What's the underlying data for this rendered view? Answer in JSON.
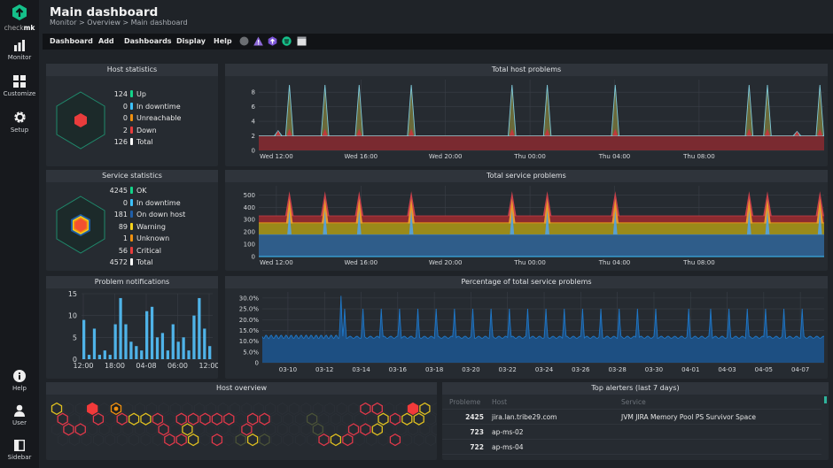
{
  "sidebar": {
    "logo": "checkmk",
    "items": [
      {
        "label": "Monitor",
        "icon": "bar-chart-icon"
      },
      {
        "label": "Customize",
        "icon": "grid-icon"
      },
      {
        "label": "Setup",
        "icon": "gear-icon"
      }
    ],
    "bottom": [
      {
        "label": "Help",
        "icon": "info-icon"
      },
      {
        "label": "User",
        "icon": "user-icon"
      },
      {
        "label": "Sidebar",
        "icon": "sidebar-toggle-icon"
      }
    ]
  },
  "header": {
    "title": "Main dashboard",
    "breadcrumb": "Monitor > Overview > Main dashboard"
  },
  "menu": {
    "items": [
      "Dashboard",
      "Add",
      "Dashboards",
      "Display",
      "Help"
    ],
    "icons": [
      "grey-circle-icon",
      "warning-triangle-icon",
      "purple-hexagon-icon",
      "green-circle-icon",
      "calendar-icon"
    ]
  },
  "colors": {
    "ok": "#13d389",
    "downtime": "#3cc2ff",
    "unreachable": "#f0900f",
    "down": "#e93c3c",
    "on_down_host": "#1f5ea8",
    "warning": "#f7d31c",
    "unknown": "#f0900f",
    "critical": "#e93c3c",
    "total": "#ffffff"
  },
  "host_stats": {
    "title": "Host statistics",
    "rows": [
      {
        "value": "124",
        "label": "Up",
        "color": "#13d389"
      },
      {
        "value": "0",
        "label": "In downtime",
        "color": "#3cc2ff"
      },
      {
        "value": "0",
        "label": "Unreachable",
        "color": "#f0900f"
      },
      {
        "value": "2",
        "label": "Down",
        "color": "#e93c3c"
      },
      {
        "value": "126",
        "label": "Total",
        "color": "#ffffff"
      }
    ]
  },
  "service_stats": {
    "title": "Service statistics",
    "rows": [
      {
        "value": "4245",
        "label": "OK",
        "color": "#13d389"
      },
      {
        "value": "0",
        "label": "In downtime",
        "color": "#3cc2ff"
      },
      {
        "value": "181",
        "label": "On down host",
        "color": "#1f5ea8"
      },
      {
        "value": "89",
        "label": "Warning",
        "color": "#f7d31c"
      },
      {
        "value": "1",
        "label": "Unknown",
        "color": "#f0900f"
      },
      {
        "value": "56",
        "label": "Critical",
        "color": "#e93c3c"
      },
      {
        "value": "4572",
        "label": "Total",
        "color": "#ffffff"
      }
    ]
  },
  "chart_data": [
    {
      "id": "host_problems",
      "type": "area",
      "title": "Total host problems",
      "xrange": [
        "Wed 11:10",
        "Thu 13:55"
      ],
      "xticks": [
        "Wed 12:00",
        "Wed 16:00",
        "Wed 20:00",
        "Thu 00:00",
        "Thu 04:00",
        "Thu 08:00"
      ],
      "ylim": [
        0,
        9
      ],
      "yticks": [
        0,
        2,
        4,
        6,
        8
      ],
      "grid": true,
      "baseline": 2,
      "spikes": [
        {
          "time": "Wed 12:05",
          "value": 2.7
        },
        {
          "time": "Wed 12:37",
          "value": 9
        },
        {
          "time": "Wed 14:18",
          "value": 9
        },
        {
          "time": "Wed 15:55",
          "value": 9
        },
        {
          "time": "Wed 18:23",
          "value": 9
        },
        {
          "time": "Wed 23:09",
          "value": 9
        },
        {
          "time": "Thu 00:49",
          "value": 9
        },
        {
          "time": "Thu 04:02",
          "value": 9
        },
        {
          "time": "Thu 10:22",
          "value": 9
        },
        {
          "time": "Thu 11:14",
          "value": 9
        },
        {
          "time": "Thu 12:38",
          "value": 2.6
        },
        {
          "time": "Thu 13:43",
          "value": 9
        }
      ]
    },
    {
      "id": "service_problems",
      "type": "area",
      "title": "Total service problems",
      "xrange": [
        "Wed 11:10",
        "Thu 13:55"
      ],
      "xticks": [
        "Wed 12:00",
        "Wed 16:00",
        "Wed 20:00",
        "Thu 00:00",
        "Thu 04:00",
        "Thu 08:00"
      ],
      "ylim": [
        0,
        560
      ],
      "yticks": [
        0,
        100,
        200,
        300,
        400,
        500
      ],
      "grid": true,
      "stack": [
        {
          "value": 180,
          "color": "#2f5d8a"
        },
        {
          "value": 90,
          "color": "#9a8a1a"
        },
        {
          "value": 10,
          "color": "#b8641c"
        },
        {
          "value": 50,
          "color": "#8c2a2f"
        }
      ],
      "spike_total": 530,
      "spike_times": [
        "Wed 12:37",
        "Wed 14:18",
        "Wed 15:55",
        "Wed 18:23",
        "Wed 23:09",
        "Thu 00:49",
        "Thu 04:02",
        "Thu 10:22",
        "Thu 11:14",
        "Thu 13:43"
      ]
    },
    {
      "id": "notifications",
      "type": "bar",
      "title": "Problem notifications",
      "ylim": [
        0,
        15
      ],
      "yticks": [
        0,
        5,
        10,
        15
      ],
      "xticks": [
        "12:00",
        "18:00",
        "04-08",
        "06:00",
        "12:00"
      ],
      "values": [
        9,
        1,
        7,
        1,
        2,
        1,
        8,
        14,
        8,
        4,
        3,
        2,
        11,
        12,
        5,
        6,
        2,
        8,
        4,
        5,
        2,
        10,
        14,
        7,
        3
      ],
      "color": "#4fb3e8"
    },
    {
      "id": "pct_service_problems",
      "type": "area",
      "title": "Percentage of total service problems",
      "xrange": [
        "03-08.6",
        "04-08.3"
      ],
      "xticks": [
        "03-10",
        "03-12",
        "03-14",
        "03-16",
        "03-18",
        "03-20",
        "03-22",
        "03-24",
        "03-26",
        "03-28",
        "03-30",
        "04-01",
        "04-03",
        "04-05",
        "04-07"
      ],
      "ylim": [
        0,
        32
      ],
      "yticks": [
        "0",
        "5.0%",
        "10.0%",
        "15.0%",
        "20.0%",
        "25.0%",
        "30.0%"
      ],
      "grid": true,
      "baseline": 11,
      "peaks": [
        {
          "date": "03-12.9",
          "value": 31
        },
        {
          "date": "03-13.1",
          "value": 25
        },
        {
          "date": "03-14.1",
          "value": 25
        },
        {
          "date": "03-15.1",
          "value": 25
        },
        {
          "date": "03-16.1",
          "value": 25
        },
        {
          "date": "03-17.1",
          "value": 25
        },
        {
          "date": "03-18.1",
          "value": 25
        },
        {
          "date": "03-19.1",
          "value": 25
        },
        {
          "date": "03-20.1",
          "value": 25
        },
        {
          "date": "03-21.1",
          "value": 25
        },
        {
          "date": "03-22.1",
          "value": 25
        },
        {
          "date": "03-23.1",
          "value": 25
        },
        {
          "date": "03-24.1",
          "value": 25
        },
        {
          "date": "03-25.1",
          "value": 25
        },
        {
          "date": "03-26.1",
          "value": 25
        },
        {
          "date": "03-27.1",
          "value": 25
        },
        {
          "date": "03-28.1",
          "value": 25
        },
        {
          "date": "03-29.1",
          "value": 25
        },
        {
          "date": "03-30.1",
          "value": 25
        },
        {
          "date": "03-31.9",
          "value": 25
        },
        {
          "date": "04-02.1",
          "value": 25
        },
        {
          "date": "04-03.1",
          "value": 25
        },
        {
          "date": "04-04.1",
          "value": 25
        },
        {
          "date": "04-05.1",
          "value": 25
        },
        {
          "date": "04-06.1",
          "value": 25
        },
        {
          "date": "04-07.1",
          "value": 25
        }
      ],
      "color": "#1f78c8"
    }
  ],
  "host_overview": {
    "title": "Host overview",
    "rows": [
      "y..R.O....................rr..Ry.",
      "r..r.ryyr.rrrrr.rr...g.....yryy..",
      ".rr......r.y....r.....g..rry.....",
      ".........rry.r.gyg....ryr...r...."
    ]
  },
  "top_alerters": {
    "title": "Top alerters (last 7 days)",
    "columns": [
      "Probleme",
      "Host",
      "Service"
    ],
    "rows": [
      {
        "count": "2425",
        "host": "jira.lan.tribe29.com",
        "service": "JVM JIRA Memory Pool PS Survivor Space"
      },
      {
        "count": "723",
        "host": "ap-ms-02",
        "service": ""
      },
      {
        "count": "722",
        "host": "ap-ms-04",
        "service": ""
      }
    ]
  }
}
